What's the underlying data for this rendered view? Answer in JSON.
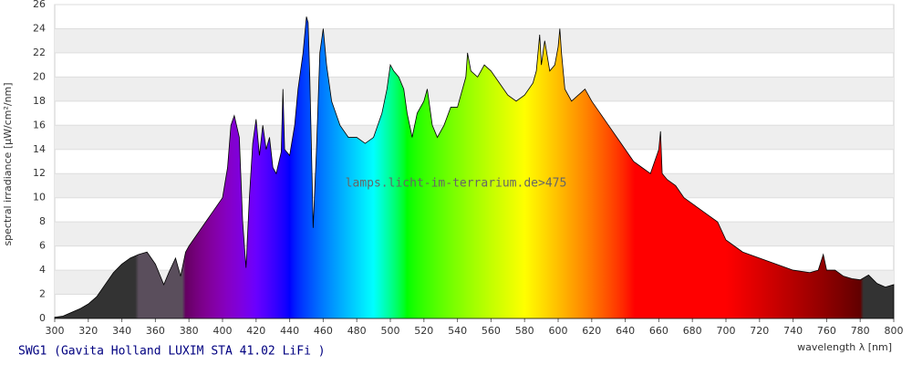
{
  "chart_data": {
    "type": "area",
    "title": "SWG1 (Gavita Holland LUXIM STA 41.02 LiFi )",
    "watermark": "lamps.licht-im-terrarium.de>475",
    "x_label": "wavelength λ [nm]",
    "y_label": "spectral irradiance [µW/cm²/nm]",
    "x": [
      300,
      305,
      310,
      315,
      320,
      325,
      330,
      335,
      340,
      345,
      350,
      355,
      360,
      365,
      368,
      372,
      375,
      378,
      380,
      385,
      390,
      395,
      400,
      403,
      405,
      407,
      410,
      412,
      414,
      416,
      418,
      420,
      422,
      424,
      426,
      428,
      430,
      432,
      435,
      436,
      437,
      440,
      443,
      445,
      448,
      450,
      451,
      452,
      453,
      454,
      456,
      458,
      460,
      462,
      465,
      470,
      475,
      480,
      485,
      490,
      495,
      498,
      500,
      502,
      505,
      508,
      510,
      513,
      516,
      520,
      522,
      525,
      528,
      532,
      536,
      540,
      545,
      546,
      548,
      552,
      556,
      560,
      565,
      570,
      575,
      580,
      585,
      587,
      588,
      589,
      590,
      592,
      595,
      598,
      600,
      601,
      602,
      604,
      608,
      612,
      616,
      620,
      625,
      630,
      635,
      640,
      645,
      650,
      655,
      660,
      661,
      662,
      665,
      670,
      675,
      680,
      685,
      690,
      695,
      700,
      705,
      710,
      720,
      730,
      740,
      750,
      755,
      758,
      760,
      765,
      770,
      775,
      780,
      785,
      790,
      795,
      800
    ],
    "values": [
      0.1,
      0.2,
      0.5,
      0.8,
      1.2,
      1.8,
      2.8,
      3.8,
      4.5,
      5.0,
      5.3,
      5.5,
      4.5,
      2.8,
      3.8,
      5.0,
      3.5,
      5.5,
      6.0,
      7.0,
      8.0,
      9.0,
      10.0,
      12.5,
      16.0,
      16.8,
      15.0,
      8.0,
      4.2,
      10.0,
      14.5,
      16.5,
      13.5,
      16.0,
      14.0,
      15.0,
      12.5,
      12.0,
      13.8,
      19.0,
      14.0,
      13.5,
      16.0,
      19.0,
      22.0,
      25.0,
      24.5,
      20.0,
      14.0,
      7.5,
      14.0,
      22.0,
      24.0,
      21.0,
      18.0,
      16.0,
      15.0,
      15.0,
      14.5,
      15.0,
      17.0,
      19.0,
      21.0,
      20.5,
      20.0,
      19.0,
      17.0,
      15.0,
      17.0,
      18.0,
      19.0,
      16.0,
      15.0,
      16.0,
      17.5,
      17.5,
      20.0,
      22.0,
      20.5,
      20.0,
      21.0,
      20.5,
      19.5,
      18.5,
      18.0,
      18.5,
      19.5,
      20.5,
      22.0,
      23.5,
      21.0,
      23.0,
      20.5,
      21.0,
      22.5,
      24.0,
      22.0,
      19.0,
      18.0,
      18.5,
      19.0,
      18.0,
      17.0,
      16.0,
      15.0,
      14.0,
      13.0,
      12.5,
      12.0,
      14.0,
      15.5,
      12.0,
      11.5,
      11.0,
      10.0,
      9.5,
      9.0,
      8.5,
      8.0,
      6.5,
      6.0,
      5.5,
      5.0,
      4.5,
      4.0,
      3.8,
      4.0,
      5.3,
      4.0,
      4.0,
      3.5,
      3.3,
      3.2,
      3.6,
      2.9,
      2.6,
      2.8
    ],
    "xlim": [
      300,
      800
    ],
    "xticks": [
      300,
      320,
      340,
      360,
      380,
      400,
      420,
      440,
      460,
      480,
      500,
      520,
      540,
      560,
      580,
      600,
      620,
      640,
      660,
      680,
      700,
      720,
      740,
      760,
      780,
      800
    ],
    "ylim": [
      0,
      26
    ],
    "yticks": [
      0,
      2,
      4,
      6,
      8,
      10,
      12,
      14,
      16,
      18,
      20,
      22,
      24,
      26
    ],
    "grid": true
  }
}
